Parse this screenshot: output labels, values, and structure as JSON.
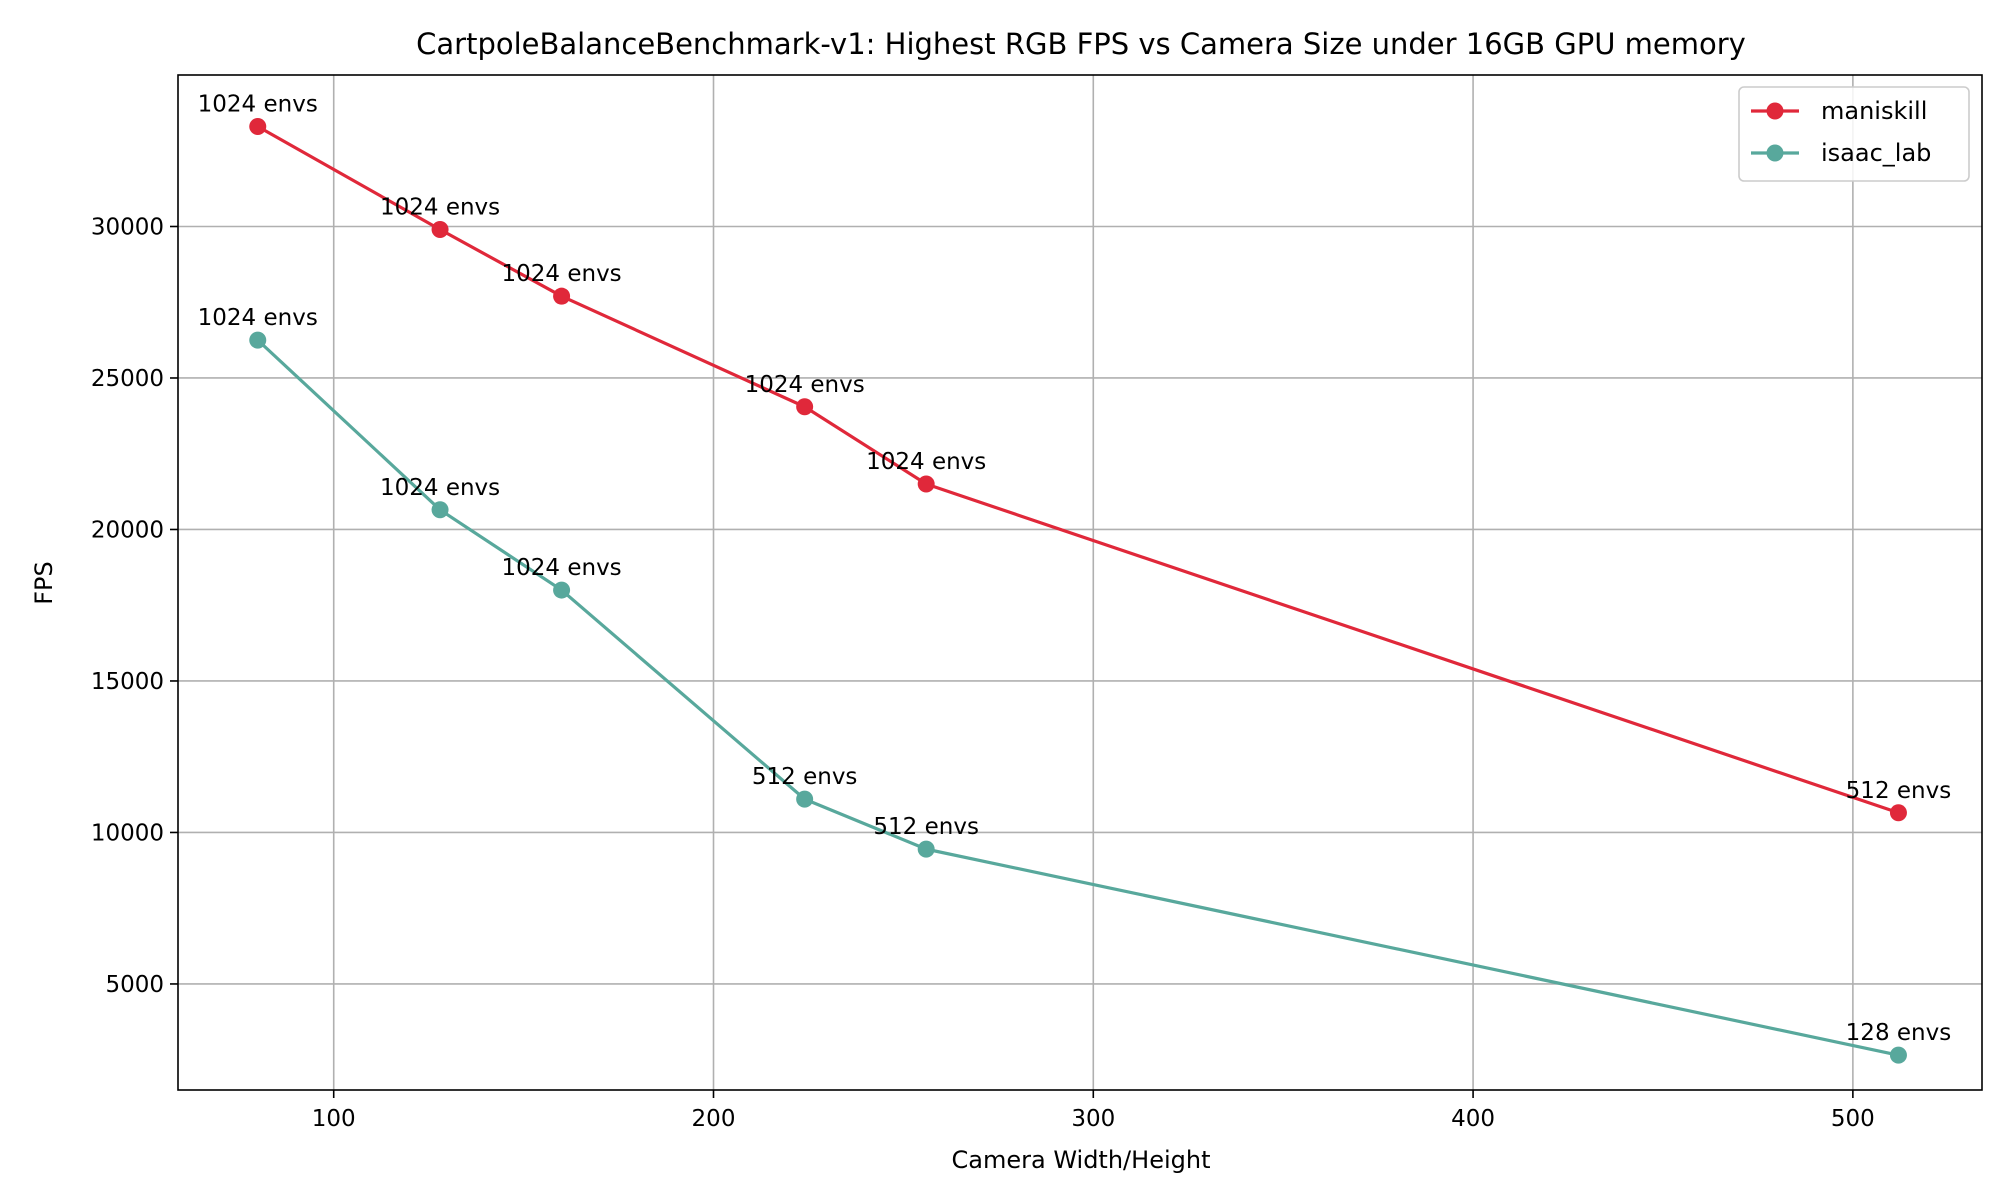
{
  "chart_data": {
    "type": "line",
    "title": "CartpoleBalanceBenchmark-v1: Highest RGB FPS vs Camera Size under 16GB GPU memory",
    "xlabel": "Camera Width/Height",
    "ylabel": "FPS",
    "xlim": [
      59,
      534
    ],
    "ylim": [
      1500,
      35000
    ],
    "xticks": [
      100,
      200,
      300,
      400,
      500
    ],
    "yticks": [
      5000,
      10000,
      15000,
      20000,
      25000,
      30000
    ],
    "grid": true,
    "legend_position": "top-right",
    "series": [
      {
        "name": "maniskill",
        "color": "#e0283a",
        "x": [
          80,
          128,
          160,
          224,
          256,
          512
        ],
        "y": [
          33300,
          29900,
          27700,
          24050,
          21500,
          10650
        ],
        "labels": [
          "1024 envs",
          "1024 envs",
          "1024 envs",
          "1024 envs",
          "1024 envs",
          "512 envs"
        ]
      },
      {
        "name": "isaac_lab",
        "color": "#58a89c",
        "x": [
          80,
          128,
          160,
          224,
          256,
          512
        ],
        "y": [
          26250,
          20650,
          18000,
          11100,
          9450,
          2650
        ],
        "labels": [
          "1024 envs",
          "1024 envs",
          "1024 envs",
          "512 envs",
          "512 envs",
          "128 envs"
        ]
      }
    ]
  }
}
